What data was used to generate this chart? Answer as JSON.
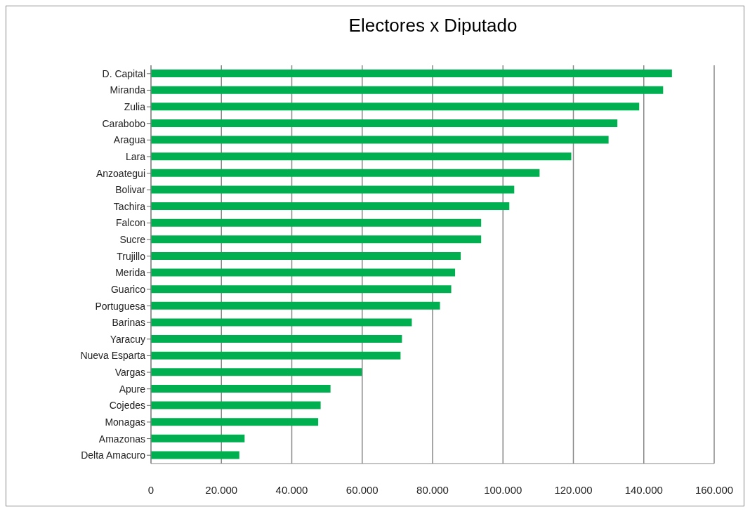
{
  "chart_data": {
    "type": "bar",
    "orientation": "horizontal",
    "title": "Electores x Diputado",
    "categories": [
      "D. Capital",
      "Miranda",
      "Zulia",
      "Carabobo",
      "Aragua",
      "Lara",
      "Anzoategui",
      "Bolivar",
      "Tachira",
      "Falcon",
      "Sucre",
      "Trujillo",
      "Merida",
      "Guarico",
      "Portuguesa",
      "Barinas",
      "Yaracuy",
      "Nueva Esparta",
      "Vargas",
      "Apure",
      "Cojedes",
      "Monagas",
      "Amazonas",
      "Delta Amacuro"
    ],
    "values": [
      148000,
      145500,
      138700,
      132500,
      130000,
      119400,
      110400,
      103200,
      101800,
      93800,
      93800,
      88000,
      86400,
      85300,
      82100,
      74100,
      71300,
      70900,
      59900,
      51000,
      48200,
      47500,
      26600,
      25100
    ],
    "color": "#00b050",
    "xlim": [
      0,
      160000
    ],
    "xticks": [
      0,
      {
        "value": 20000,
        "label": "20.000"
      },
      {
        "value": 40000,
        "label": "40.000"
      },
      {
        "value": 60000,
        "label": "60.000"
      },
      {
        "value": 80000,
        "label": "80.000"
      },
      {
        "value": 100000,
        "label": "100.000"
      },
      {
        "value": 120000,
        "label": "120.000"
      },
      {
        "value": 140000,
        "label": "140.000"
      },
      {
        "value": 160000,
        "label": "160.000"
      }
    ],
    "grid": "x"
  }
}
